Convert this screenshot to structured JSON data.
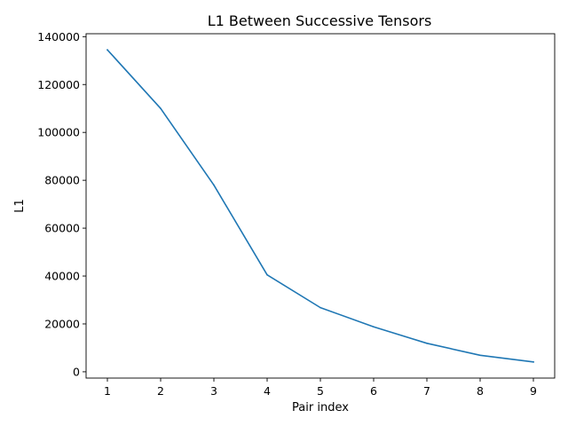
{
  "chart_data": {
    "type": "line",
    "title": "L1 Between Successive Tensors",
    "xlabel": "Pair index",
    "ylabel": "L1",
    "x": [
      1,
      2,
      3,
      4,
      5,
      6,
      7,
      8,
      9
    ],
    "series": [
      {
        "values": [
          134500,
          110000,
          78000,
          40500,
          26800,
          18800,
          11900,
          6900,
          4100
        ],
        "color": "#1f77b4"
      }
    ],
    "xticks": [
      1,
      2,
      3,
      4,
      5,
      6,
      7,
      8,
      9
    ],
    "yticks": [
      0,
      20000,
      40000,
      60000,
      80000,
      100000,
      120000,
      140000
    ],
    "xlim": [
      0.6,
      9.4
    ],
    "ylim": [
      -2626,
      141226
    ],
    "grid": false,
    "legend": false
  }
}
